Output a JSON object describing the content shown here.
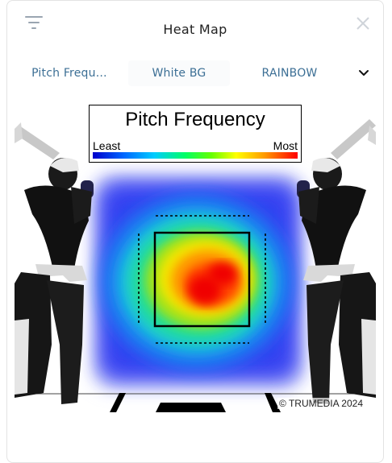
{
  "header": {
    "title": "Heat Map",
    "filter_icon": "filter-icon",
    "close_icon": "close-icon"
  },
  "tabs": [
    {
      "label": "Pitch Frequ…"
    },
    {
      "label": "White BG"
    },
    {
      "label": "RAINBOW"
    }
  ],
  "dropdown_icon": "chevron-down-icon",
  "legend": {
    "title": "Pitch Frequency",
    "min_label": "Least",
    "max_label": "Most"
  },
  "copyright": "© TRUMEDIA 2024",
  "colors": {
    "accent": "#3c6f95",
    "scale_low": "#0000cc",
    "scale_high": "#ff0000"
  }
}
